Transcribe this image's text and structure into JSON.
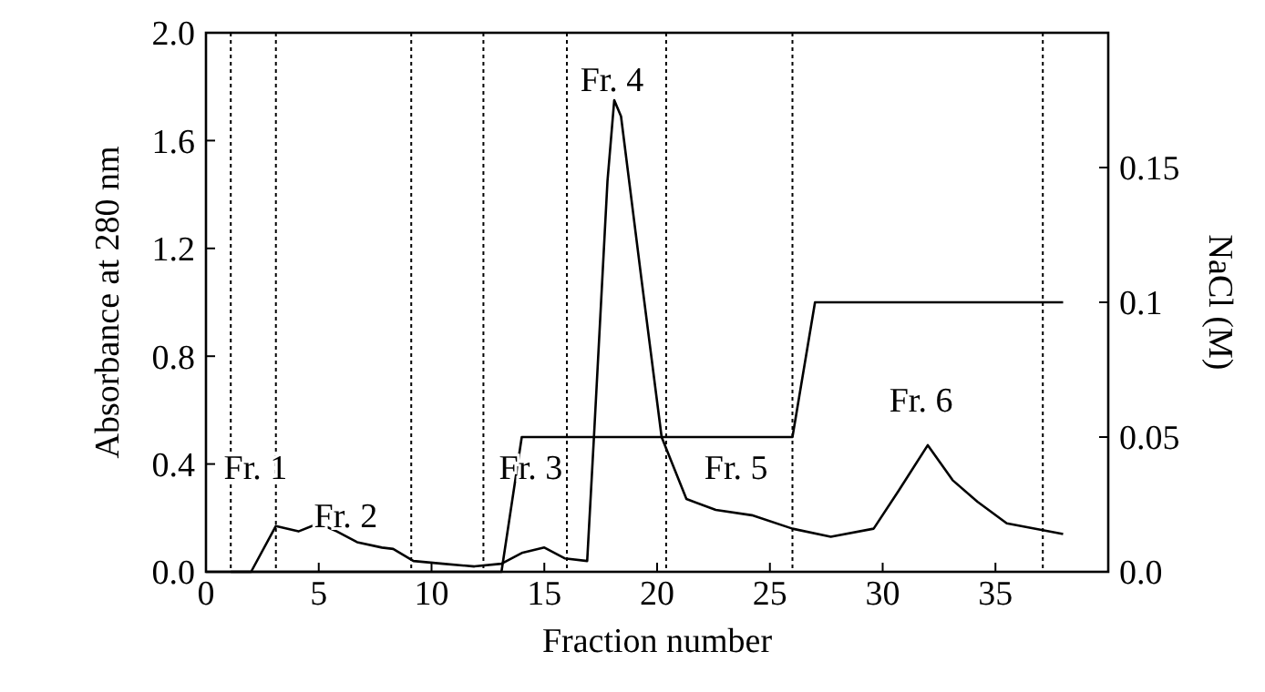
{
  "chart_data": {
    "type": "line",
    "xlabel": "Fraction number",
    "ylabel": "Absorbance at 280 nm",
    "y2label": "NaCl (M)",
    "xlim": [
      0,
      40
    ],
    "xticks": [
      0,
      5,
      10,
      15,
      20,
      25,
      30,
      35
    ],
    "ylim": [
      0,
      2.0
    ],
    "yticks": [
      {
        "value": 0,
        "label": "0.0"
      },
      {
        "value": 0.4,
        "label": "0.4"
      },
      {
        "value": 0.8,
        "label": "0.8"
      },
      {
        "value": 1.2,
        "label": "1.2"
      },
      {
        "value": 1.6,
        "label": "1.6"
      },
      {
        "value": 2.0,
        "label": "2.0"
      }
    ],
    "y2lim": [
      0,
      0.2
    ],
    "y2ticks": [
      {
        "value": 0,
        "label": "0.0"
      },
      0.05,
      0.1,
      0.15
    ],
    "grid": false,
    "series": [
      {
        "color": "#000000",
        "x": [
          1.1,
          2.0,
          3.1,
          4.1,
          5.0,
          5.8,
          6.7,
          7.8,
          8.3,
          9.2,
          10.5,
          11.9,
          13.1,
          14.0,
          15.0,
          15.9,
          16.9,
          17.2,
          17.8,
          18.1,
          18.4,
          19.3,
          20.2,
          21.3,
          22.6,
          24.2,
          26.0,
          27.7,
          29.6,
          30.7,
          32.0,
          33.1,
          34.2,
          35.5,
          38.0
        ],
        "values": [
          0,
          0,
          0.17,
          0.15,
          0.18,
          0.15,
          0.11,
          0.09,
          0.085,
          0.04,
          0.03,
          0.02,
          0.03,
          0.07,
          0.09,
          0.05,
          0.04,
          0.5,
          1.45,
          1.75,
          1.69,
          1.09,
          0.5,
          0.27,
          0.23,
          0.21,
          0.16,
          0.13,
          0.16,
          0.3,
          0.47,
          0.34,
          0.26,
          0.18,
          0.14
        ]
      },
      {
        "color": "#000000",
        "axis": "y2",
        "x": [
          0,
          13.1,
          14.0,
          26.0,
          27.0,
          38.0
        ],
        "values": [
          0,
          0,
          0.05,
          0.05,
          0.1,
          0.1
        ]
      }
    ],
    "ref_lines": [
      {
        "axis": "x",
        "value": 1.1,
        "line_style": "dotted"
      },
      {
        "axis": "x",
        "value": 3.1,
        "line_style": "dotted"
      },
      {
        "axis": "x",
        "value": 9.1,
        "line_style": "dotted"
      },
      {
        "axis": "x",
        "value": 12.3,
        "line_style": "dotted"
      },
      {
        "axis": "x",
        "value": 16.0,
        "line_style": "dotted"
      },
      {
        "axis": "x",
        "value": 20.4,
        "line_style": "dotted"
      },
      {
        "axis": "x",
        "value": 26.0,
        "line_style": "dotted"
      },
      {
        "axis": "x",
        "value": 37.1,
        "line_style": "dotted"
      }
    ],
    "annotations": [
      "Fr. 1",
      "Fr. 2",
      "Fr. 3",
      "Fr. 4",
      "Fr. 5",
      "Fr. 6"
    ]
  }
}
